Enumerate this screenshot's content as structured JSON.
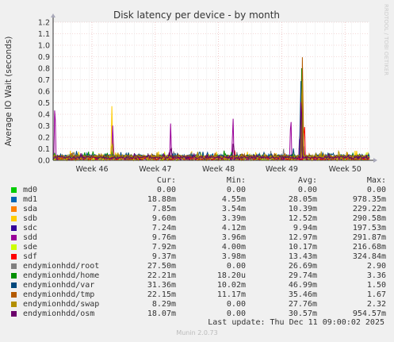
{
  "chart_data": {
    "type": "line",
    "title": "Disk latency per device - by month",
    "ylabel": "Average IO Wait (seconds)",
    "watermark": "RRDTOOL / TOBI OETIKER",
    "ylim": [
      0,
      1.2
    ],
    "yticks": [
      "0.0",
      "0.1",
      "0.2",
      "0.3",
      "0.4",
      "0.5",
      "0.6",
      "0.7",
      "0.8",
      "0.9",
      "1.0",
      "1.1",
      "1.2"
    ],
    "xticks": [
      "Week 46",
      "Week 47",
      "Week 48",
      "Week 49",
      "Week 50"
    ],
    "grid": true,
    "x_domain_days": [
      0,
      35
    ],
    "xtick_days": [
      4.3,
      11.3,
      18.3,
      25.3,
      32.3
    ],
    "series": [
      {
        "name": "md0",
        "color": "#00cc00",
        "cur": "0.00",
        "min": "0.00",
        "avg": "0.00",
        "max": "0.00",
        "base": 0,
        "noise": 0,
        "spikes": []
      },
      {
        "name": "md1",
        "color": "#0066b3",
        "cur": "18.88m",
        "min": "4.55m",
        "avg": "28.05m",
        "max": "978.35m",
        "base": 0.02,
        "noise": 0.01,
        "spikes": [
          [
            27.5,
            0.65
          ],
          [
            2.8,
            0.08
          ]
        ]
      },
      {
        "name": "sda",
        "color": "#ff8000",
        "cur": "7.85m",
        "min": "3.54m",
        "avg": "10.39m",
        "max": "229.22m",
        "base": 0.008,
        "noise": 0.005,
        "spikes": [
          [
            27.6,
            0.23
          ]
        ]
      },
      {
        "name": "sdb",
        "color": "#ffcc00",
        "cur": "9.60m",
        "min": "3.39m",
        "avg": "12.52m",
        "max": "290.58m",
        "base": 0.01,
        "noise": 0.02,
        "spikes": [
          [
            6.5,
            0.47
          ],
          [
            27.4,
            0.29
          ],
          [
            13.5,
            0.05
          ]
        ]
      },
      {
        "name": "sdc",
        "color": "#330099",
        "cur": "7.24m",
        "min": "4.12m",
        "avg": "9.94m",
        "max": "197.53m",
        "base": 0.01,
        "noise": 0.008,
        "spikes": [
          [
            27.7,
            0.2
          ],
          [
            12.8,
            0.05
          ]
        ]
      },
      {
        "name": "sdd",
        "color": "#990099",
        "cur": "9.76m",
        "min": "3.96m",
        "avg": "12.97m",
        "max": "291.87m",
        "base": 0.012,
        "noise": 0.008,
        "spikes": [
          [
            0.2,
            0.6
          ],
          [
            6.6,
            0.35
          ],
          [
            13.0,
            0.32
          ],
          [
            19.9,
            0.42
          ],
          [
            26.3,
            0.46
          ],
          [
            27.3,
            0.3
          ]
        ]
      },
      {
        "name": "sde",
        "color": "#ccff00",
        "cur": "7.92m",
        "min": "4.00m",
        "avg": "10.17m",
        "max": "216.68m",
        "base": 0.01,
        "noise": 0.02,
        "spikes": [
          [
            27.5,
            0.21
          ],
          [
            6.4,
            0.06
          ]
        ]
      },
      {
        "name": "sdf",
        "color": "#ff0000",
        "cur": "9.37m",
        "min": "3.98m",
        "avg": "13.43m",
        "max": "324.84m",
        "base": 0.012,
        "noise": 0.01,
        "spikes": [
          [
            27.8,
            0.4
          ],
          [
            20.1,
            0.1
          ]
        ]
      },
      {
        "name": "endymionhdd/root",
        "color": "#808080",
        "cur": "27.50m",
        "min": "0.00",
        "avg": "26.69m",
        "max": "2.90",
        "base": 0.025,
        "noise": 0.015,
        "spikes": [
          [
            2.3,
            0.09
          ],
          [
            13.4,
            0.07
          ],
          [
            25.5,
            0.1
          ]
        ]
      },
      {
        "name": "endymionhdd/home",
        "color": "#008f00",
        "cur": "22.21m",
        "min": "18.20u",
        "avg": "29.74m",
        "max": "3.36",
        "base": 0.025,
        "noise": 0.015,
        "spikes": [
          [
            27.5,
            0.8
          ],
          [
            6.5,
            0.08
          ]
        ]
      },
      {
        "name": "endymionhdd/var",
        "color": "#00487d",
        "cur": "31.36m",
        "min": "10.02m",
        "avg": "46.99m",
        "max": "1.50",
        "base": 0.035,
        "noise": 0.012,
        "spikes": [
          [
            27.4,
            0.8
          ],
          [
            26.6,
            0.12
          ]
        ]
      },
      {
        "name": "endymionhdd/tmp",
        "color": "#b35a00",
        "cur": "22.15m",
        "min": "11.17m",
        "avg": "35.46m",
        "max": "1.67",
        "base": 0.03,
        "noise": 0.01,
        "spikes": [
          [
            27.6,
            1.04
          ]
        ]
      },
      {
        "name": "endymionhdd/swap",
        "color": "#b38f00",
        "cur": "8.29m",
        "min": "0.00",
        "avg": "27.76m",
        "max": "2.32",
        "base": 0.02,
        "noise": 0.02,
        "spikes": [
          [
            27.55,
            0.95
          ],
          [
            6.55,
            0.2
          ]
        ]
      },
      {
        "name": "endymionhdd/osm",
        "color": "#6b006b",
        "cur": "18.07m",
        "min": "0.00",
        "avg": "30.57m",
        "max": "954.57m",
        "base": 0.02,
        "noise": 0.012,
        "spikes": [
          [
            27.45,
            0.7
          ],
          [
            19.95,
            0.2
          ],
          [
            13.05,
            0.15
          ]
        ]
      }
    ]
  },
  "legend": {
    "headers": {
      "cur": "Cur:",
      "min": "Min:",
      "avg": "Avg:",
      "max": "Max:"
    }
  },
  "footer": {
    "last_update": "Last update: Thu Dec 11 09:00:02 2025",
    "version": "Munin 2.0.73"
  }
}
